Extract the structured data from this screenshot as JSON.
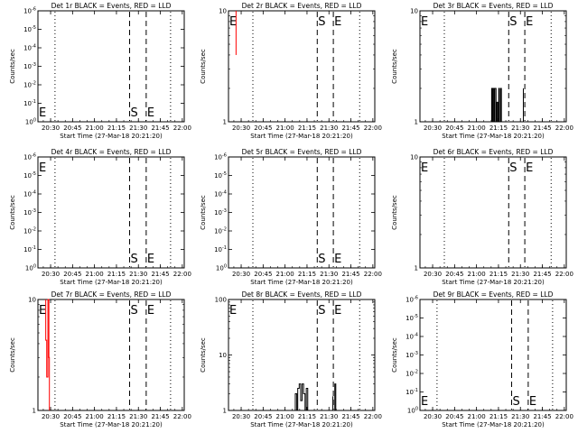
{
  "colors": {
    "background": "#ffffff",
    "axis": "#000000",
    "events": "#000000",
    "lld": "#ff0000"
  },
  "x_tick_labels": [
    "20:30",
    "20:45",
    "21:00",
    "21:15",
    "21:30",
    "21:45",
    "22:00"
  ],
  "chart_data": [
    {
      "type": "line",
      "title": "Det 1r BLACK = Events, RED = LLD",
      "xlabel": "Start Time (27-Mar-18 20:21:20)",
      "ylabel": "Counts/sec",
      "xlim": [
        "20:21:20",
        "22:01:20"
      ],
      "ylim": [
        1,
        10
      ],
      "yscale": "log",
      "y_tick_labels": [
        "10^0",
        "10^-1",
        "10^-2",
        "10^-3",
        "10^-4",
        "10^-5",
        "10^-6"
      ],
      "markers": [
        {
          "label": "E",
          "time": "20:21:40",
          "style": "none",
          "label_pos": "bottom"
        },
        {
          "time": "20:33:00",
          "style": "dotted"
        },
        {
          "label": "S",
          "time": "21:24:00",
          "style": "dashed",
          "label_pos": "bottom"
        },
        {
          "label": "E",
          "time": "21:35:20",
          "style": "dashed",
          "label_pos": "bottom"
        },
        {
          "time": "21:52:00",
          "style": "dotted"
        }
      ],
      "series": []
    },
    {
      "type": "line",
      "title": "Det 2r BLACK = Events, RED = LLD",
      "xlabel": "Start Time (27-Mar-18 20:21:20)",
      "ylabel": "Counts/sec",
      "xlim": [
        "20:21:20",
        "22:01:20"
      ],
      "ylim": [
        1,
        10
      ],
      "yscale": "log",
      "y_tick_labels": [
        "1",
        "10"
      ],
      "markers": [
        {
          "label": "E",
          "time": "20:21:40",
          "style": "none",
          "label_pos": "top"
        },
        {
          "time": "20:38:00",
          "style": "dotted"
        },
        {
          "label": "S",
          "time": "21:22:00",
          "style": "dashed",
          "label_pos": "top"
        },
        {
          "label": "E",
          "time": "21:33:00",
          "style": "dashed",
          "label_pos": "top"
        },
        {
          "time": "21:51:00",
          "style": "dotted"
        }
      ],
      "series": [
        {
          "color": "#ff0000",
          "points": [
            [
              "20:26:30",
              4
            ],
            [
              "20:26:30",
              10
            ]
          ]
        }
      ]
    },
    {
      "type": "line",
      "title": "Det 3r BLACK = Events, RED = LLD",
      "xlabel": "Start Time (27-Mar-18 20:21:20)",
      "ylabel": "Counts/sec",
      "xlim": [
        "20:21:20",
        "22:01:20"
      ],
      "ylim": [
        1,
        10
      ],
      "yscale": "log",
      "y_tick_labels": [
        "1",
        "10"
      ],
      "markers": [
        {
          "label": "E",
          "time": "20:21:40",
          "style": "none",
          "label_pos": "top"
        },
        {
          "time": "20:38:00",
          "style": "dotted"
        },
        {
          "label": "S",
          "time": "21:22:00",
          "style": "dashed",
          "label_pos": "top"
        },
        {
          "label": "E",
          "time": "21:33:00",
          "style": "dashed",
          "label_pos": "top"
        },
        {
          "time": "21:51:00",
          "style": "dotted"
        }
      ],
      "series": [
        {
          "color": "#000000",
          "points": [
            [
              "21:10:20",
              1
            ],
            [
              "21:10:20",
              2
            ],
            [
              "21:10:50",
              2
            ],
            [
              "21:10:50",
              1
            ],
            [
              "21:11:20",
              1
            ],
            [
              "21:11:20",
              2
            ],
            [
              "21:12:00",
              2
            ],
            [
              "21:12:00",
              1
            ],
            [
              "21:12:30",
              1
            ],
            [
              "21:12:30",
              2
            ],
            [
              "21:13:20",
              2
            ],
            [
              "21:13:20",
              1
            ],
            [
              "21:13:50",
              1
            ],
            [
              "21:13:50",
              1.5
            ],
            [
              "21:14:30",
              1.5
            ],
            [
              "21:14:30",
              1
            ],
            [
              "21:15:10",
              1
            ],
            [
              "21:15:10",
              2
            ],
            [
              "21:15:40",
              2
            ],
            [
              "21:15:40",
              1
            ],
            [
              "21:16:30",
              1
            ],
            [
              "21:16:30",
              2
            ],
            [
              "21:17:00",
              2
            ],
            [
              "21:17:00",
              1
            ]
          ]
        },
        {
          "color": "#000000",
          "points": [
            [
              "21:32:00",
              1
            ],
            [
              "21:32:00",
              2
            ]
          ]
        }
      ]
    },
    {
      "type": "line",
      "title": "Det 4r BLACK = Events, RED = LLD",
      "xlabel": "Start Time (27-Mar-18 20:21:20)",
      "ylabel": "Counts/sec",
      "xlim": [
        "20:21:20",
        "22:01:20"
      ],
      "ylim": [
        1,
        10
      ],
      "yscale": "log",
      "y_tick_labels": [
        "10^0",
        "10^-1",
        "10^-2",
        "10^-3",
        "10^-4",
        "10^-5",
        "10^-6"
      ],
      "markers": [
        {
          "label": "E",
          "time": "20:21:40",
          "style": "none",
          "label_pos": "top"
        },
        {
          "time": "20:33:00",
          "style": "dotted"
        },
        {
          "label": "S",
          "time": "21:24:00",
          "style": "dashed",
          "label_pos": "bottom"
        },
        {
          "label": "E",
          "time": "21:35:20",
          "style": "dashed",
          "label_pos": "bottom"
        },
        {
          "time": "21:52:00",
          "style": "dotted"
        }
      ],
      "series": []
    },
    {
      "type": "line",
      "title": "Det 5r BLACK = Events, RED = LLD",
      "xlabel": "Start Time (27-Mar-18 20:21:20)",
      "ylabel": "Counts/sec",
      "xlim": [
        "20:21:20",
        "22:01:20"
      ],
      "ylim": [
        1,
        10
      ],
      "yscale": "log",
      "y_tick_labels": [
        "10^0",
        "10^-1",
        "10^-2",
        "10^-3",
        "10^-4",
        "10^-5",
        "10^-6"
      ],
      "markers": [
        {
          "time": "20:38:00",
          "style": "dotted"
        },
        {
          "label": "S",
          "time": "21:22:00",
          "style": "dashed",
          "label_pos": "bottom"
        },
        {
          "label": "E",
          "time": "21:33:00",
          "style": "dashed",
          "label_pos": "bottom"
        },
        {
          "time": "21:51:00",
          "style": "dotted"
        }
      ],
      "series": []
    },
    {
      "type": "line",
      "title": "Det 6r BLACK = Events, RED = LLD",
      "xlabel": "Start Time (27-Mar-18 20:21:20)",
      "ylabel": "Counts/sec",
      "xlim": [
        "20:21:20",
        "22:01:20"
      ],
      "ylim": [
        1,
        10
      ],
      "yscale": "log",
      "y_tick_labels": [
        "1",
        "10"
      ],
      "markers": [
        {
          "label": "E",
          "time": "20:21:40",
          "style": "none",
          "label_pos": "top"
        },
        {
          "time": "20:38:00",
          "style": "dotted"
        },
        {
          "label": "S",
          "time": "21:22:00",
          "style": "dashed",
          "label_pos": "top"
        },
        {
          "label": "E",
          "time": "21:33:00",
          "style": "dashed",
          "label_pos": "top"
        },
        {
          "time": "21:51:00",
          "style": "dotted"
        }
      ],
      "series": []
    },
    {
      "type": "line",
      "title": "Det 7r BLACK = Events, RED = LLD",
      "xlabel": "Start Time (27-Mar-18 20:21:20)",
      "ylabel": "Counts/sec",
      "xlim": [
        "20:21:20",
        "22:01:20"
      ],
      "ylim": [
        1,
        10
      ],
      "yscale": "log",
      "y_tick_labels": [
        "1",
        "10"
      ],
      "markers": [
        {
          "label": "E",
          "time": "20:21:40",
          "style": "none",
          "label_pos": "top"
        },
        {
          "time": "20:33:00",
          "style": "dotted"
        },
        {
          "label": "S",
          "time": "21:24:00",
          "style": "dashed",
          "label_pos": "top"
        },
        {
          "label": "E",
          "time": "21:35:20",
          "style": "dashed",
          "label_pos": "top"
        },
        {
          "time": "21:52:00",
          "style": "dotted"
        }
      ],
      "series": [
        {
          "color": "#ff0000",
          "points": [
            [
              "20:26:40",
              10
            ],
            [
              "20:26:40",
              4.3
            ],
            [
              "20:27:20",
              4.3
            ],
            [
              "20:27:20",
              2
            ],
            [
              "20:28:10",
              2
            ],
            [
              "20:28:10",
              10
            ],
            [
              "20:28:50",
              10
            ],
            [
              "20:28:50",
              3
            ],
            [
              "20:29:10",
              3
            ],
            [
              "20:29:10",
              1
            ]
          ]
        }
      ]
    },
    {
      "type": "line",
      "title": "Det 8r BLACK = Events, RED = LLD",
      "xlabel": "Start Time (27-Mar-18 20:21:20)",
      "ylabel": "Counts/sec",
      "xlim": [
        "20:21:20",
        "22:01:20"
      ],
      "ylim": [
        1,
        100
      ],
      "yscale": "log",
      "y_tick_labels": [
        "1",
        "10",
        "100"
      ],
      "markers": [
        {
          "label": "E",
          "time": "20:21:40",
          "style": "none",
          "label_pos": "top"
        },
        {
          "time": "20:38:00",
          "style": "dotted"
        },
        {
          "label": "S",
          "time": "21:22:00",
          "style": "dashed",
          "label_pos": "top"
        },
        {
          "label": "E",
          "time": "21:33:00",
          "style": "dashed",
          "label_pos": "top"
        },
        {
          "time": "21:51:00",
          "style": "dotted"
        }
      ],
      "series": [
        {
          "color": "#000000",
          "points": [
            [
              "21:07:00",
              1
            ],
            [
              "21:07:00",
              2
            ],
            [
              "21:08:00",
              2
            ],
            [
              "21:08:00",
              1
            ],
            [
              "21:08:40",
              1
            ],
            [
              "21:08:40",
              2.5
            ],
            [
              "21:09:40",
              2.5
            ],
            [
              "21:09:40",
              3
            ],
            [
              "21:10:40",
              3
            ],
            [
              "21:10:40",
              1.5
            ],
            [
              "21:11:40",
              1.5
            ],
            [
              "21:11:40",
              3
            ],
            [
              "21:12:40",
              3
            ],
            [
              "21:12:40",
              2
            ],
            [
              "21:13:40",
              2
            ],
            [
              "21:13:40",
              1
            ],
            [
              "21:14:30",
              1
            ],
            [
              "21:14:30",
              2.5
            ],
            [
              "21:15:30",
              2.5
            ],
            [
              "21:15:30",
              1
            ]
          ]
        },
        {
          "color": "#000000",
          "points": [
            [
              "21:34:00",
              1
            ],
            [
              "21:34:00",
              3
            ],
            [
              "21:34:40",
              3
            ],
            [
              "21:34:40",
              1
            ]
          ]
        },
        {
          "color": "#000000",
          "points": [
            [
              "21:32:40",
              1
            ],
            [
              "21:32:40",
              1.8
            ]
          ]
        }
      ]
    },
    {
      "type": "line",
      "title": "Det 9r BLACK = Events, RED = LLD",
      "xlabel": "Start Time (27-Mar-18 20:21:20)",
      "ylabel": "Counts/sec",
      "xlim": [
        "20:21:20",
        "22:01:20"
      ],
      "ylim": [
        1,
        10
      ],
      "yscale": "log",
      "y_tick_labels": [
        "10^0",
        "10^-1",
        "10^-2",
        "10^-3",
        "10^-4",
        "10^-5",
        "10^-6"
      ],
      "markers": [
        {
          "label": "E",
          "time": "20:21:40",
          "style": "none",
          "label_pos": "bottom"
        },
        {
          "time": "20:33:00",
          "style": "dotted"
        },
        {
          "label": "S",
          "time": "21:24:00",
          "style": "dashed",
          "label_pos": "bottom"
        },
        {
          "label": "E",
          "time": "21:35:20",
          "style": "dashed",
          "label_pos": "bottom"
        },
        {
          "time": "21:52:00",
          "style": "dotted"
        }
      ],
      "series": []
    }
  ]
}
